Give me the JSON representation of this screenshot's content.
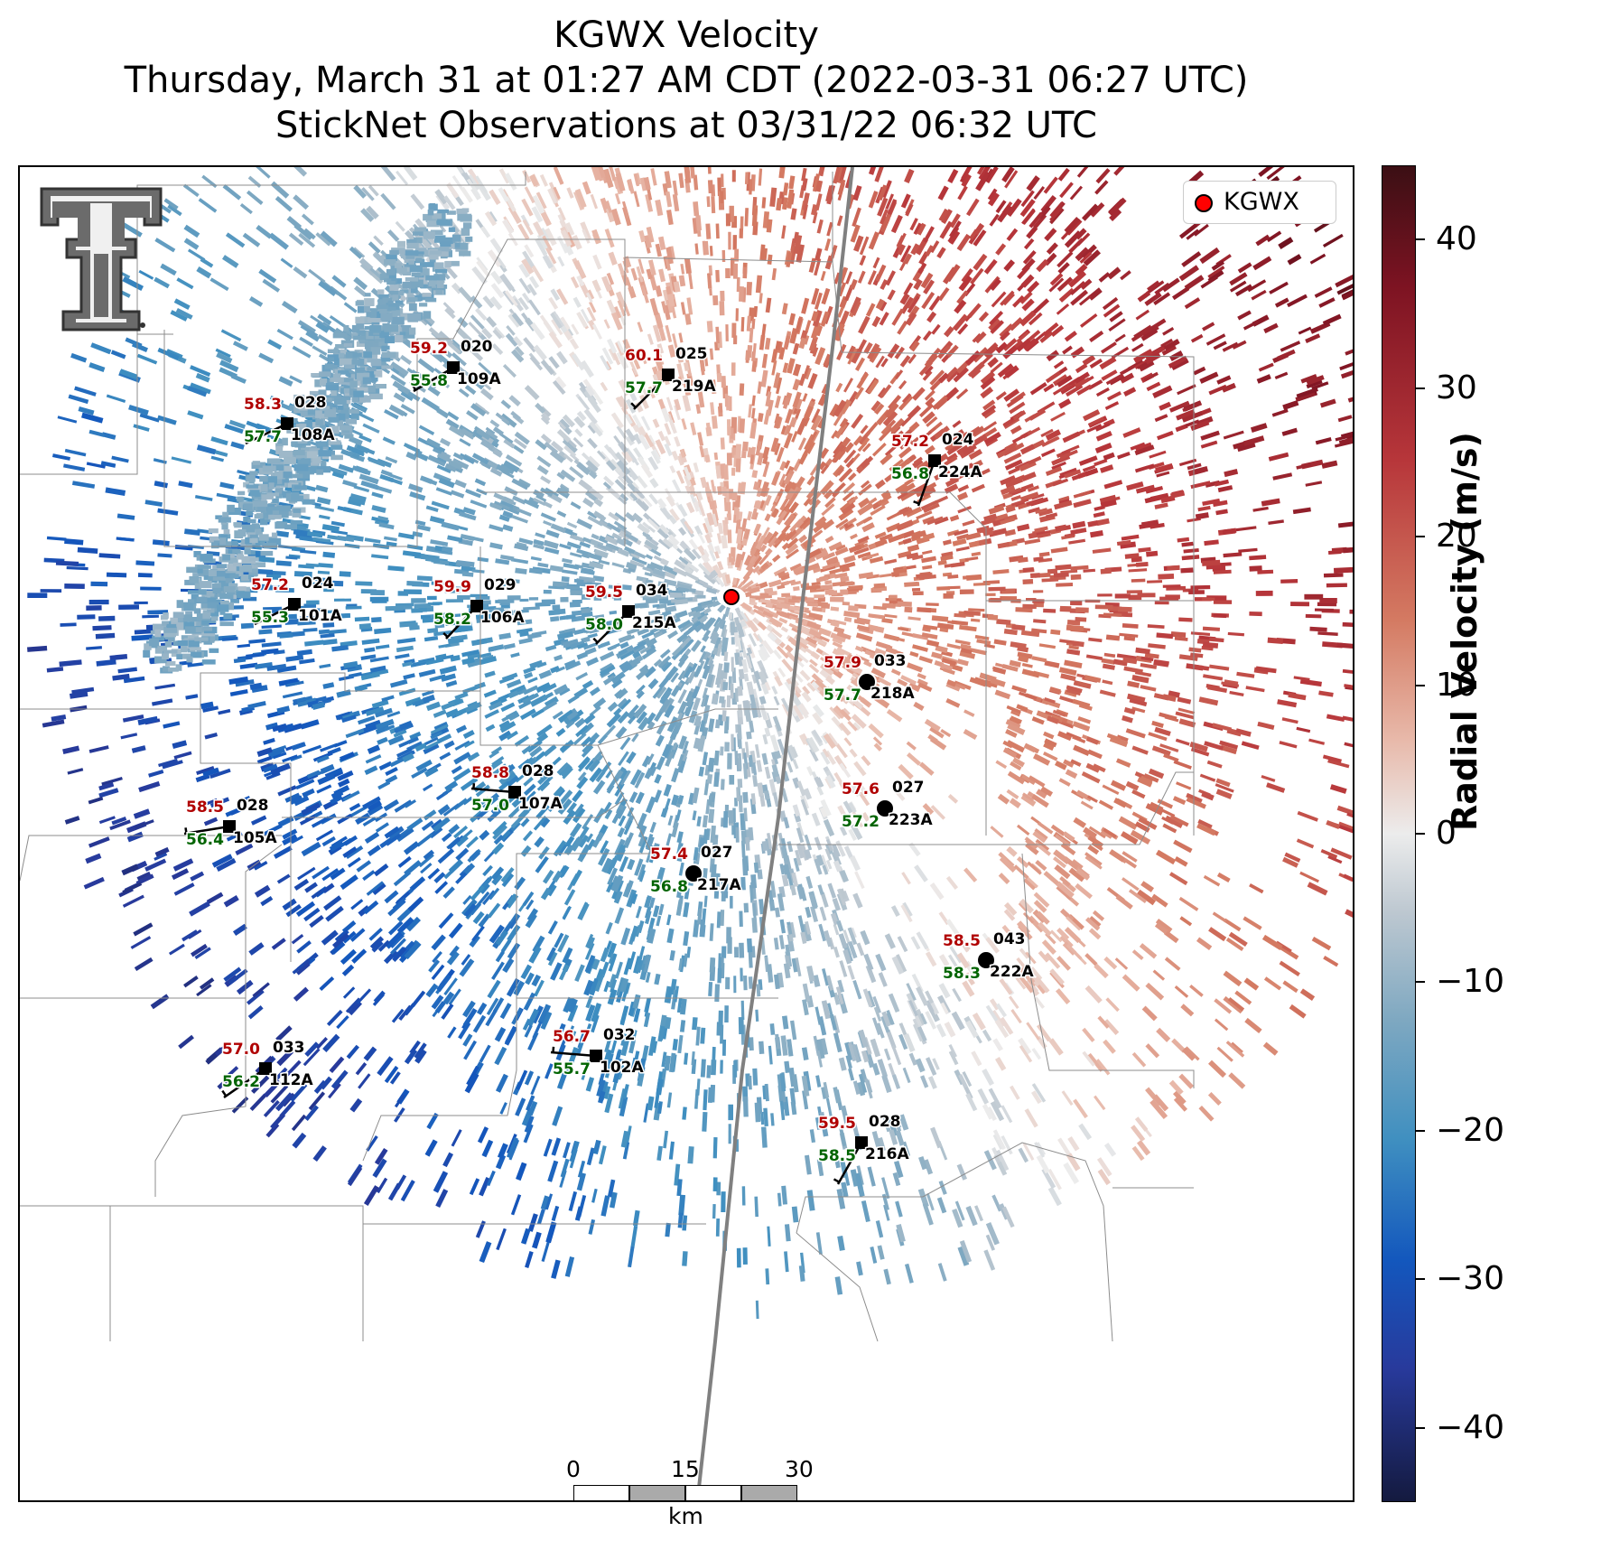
{
  "title": {
    "line1": "KGWX Velocity",
    "line2": "Thursday, March 31 at 01:27 AM CDT (2022-03-31 06:27 UTC)",
    "line3": "StickNet Observations at 03/31/22 06:32 UTC"
  },
  "legend": {
    "label": "KGWX",
    "marker_color": "#ff0000"
  },
  "colorbar": {
    "label": "Radial Velocity (m/s)",
    "min": -45,
    "max": 45,
    "ticks": [
      "40",
      "30",
      "20",
      "10",
      "0",
      "−10",
      "−20",
      "−30",
      "−40"
    ],
    "tick_values": [
      40,
      30,
      20,
      10,
      0,
      -10,
      -20,
      -30,
      -40
    ]
  },
  "scale_bar": {
    "ticks": [
      "0",
      "15",
      "30"
    ],
    "unit": "km"
  },
  "colors": {
    "temperature": "#b00000",
    "dewpoint": "#006400",
    "inbound": "#3b8fc4",
    "outbound": "#c4543a"
  },
  "stations": [
    {
      "id": "020",
      "name": "109A",
      "temp": "59.2",
      "dew": "55.8",
      "marker": "square"
    },
    {
      "id": "025",
      "name": "219A",
      "temp": "60.1",
      "dew": "57.7",
      "marker": "square"
    },
    {
      "id": "028",
      "name": "108A",
      "temp": "58.3",
      "dew": "57.7",
      "marker": "square"
    },
    {
      "id": "024",
      "name": "224A",
      "temp": "57.2",
      "dew": "56.8",
      "marker": "square"
    },
    {
      "id": "024",
      "name": "101A",
      "temp": "57.2",
      "dew": "55.3",
      "marker": "square"
    },
    {
      "id": "029",
      "name": "106A",
      "temp": "59.9",
      "dew": "58.2",
      "marker": "square"
    },
    {
      "id": "034",
      "name": "215A",
      "temp": "59.5",
      "dew": "58.0",
      "marker": "square"
    },
    {
      "id": "033",
      "name": "218A",
      "temp": "57.9",
      "dew": "57.7",
      "marker": "circle"
    },
    {
      "id": "028",
      "name": "107A",
      "temp": "58.8",
      "dew": "57.0",
      "marker": "square"
    },
    {
      "id": "028",
      "name": "105A",
      "temp": "58.5",
      "dew": "56.4",
      "marker": "square"
    },
    {
      "id": "027",
      "name": "223A",
      "temp": "57.6",
      "dew": "57.2",
      "marker": "circle"
    },
    {
      "id": "027",
      "name": "217A",
      "temp": "57.4",
      "dew": "56.8",
      "marker": "circle"
    },
    {
      "id": "043",
      "name": "222A",
      "temp": "58.5",
      "dew": "58.3",
      "marker": "circle"
    },
    {
      "id": "033",
      "name": "112A",
      "temp": "57.0",
      "dew": "56.2",
      "marker": "square"
    },
    {
      "id": "032",
      "name": "102A",
      "temp": "56.7",
      "dew": "55.7",
      "marker": "square"
    },
    {
      "id": "028",
      "name": "216A",
      "temp": "59.5",
      "dew": "58.5",
      "marker": "square"
    }
  ]
}
